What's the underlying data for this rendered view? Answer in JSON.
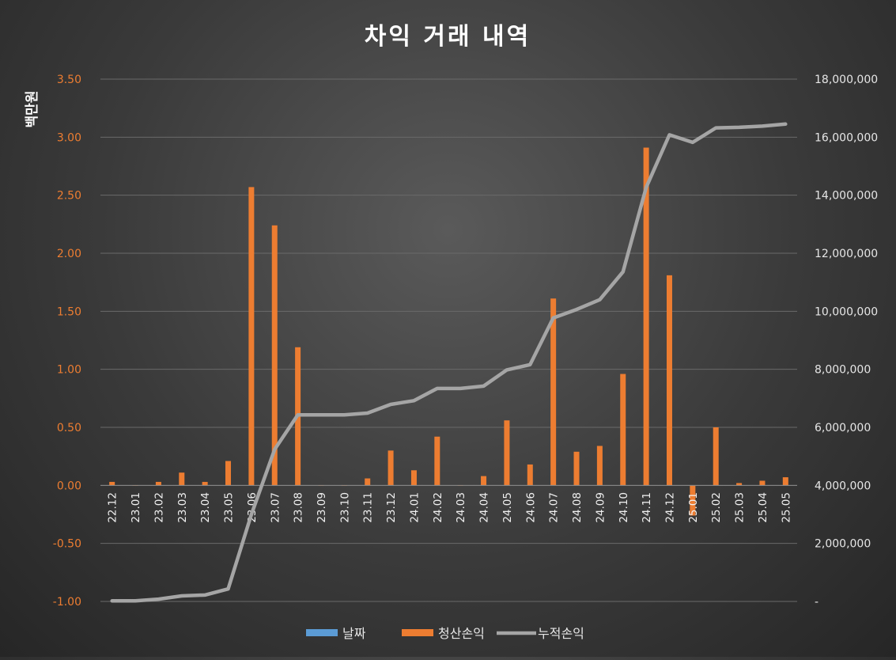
{
  "chart_data": {
    "type": "bar",
    "title": "차익 거래 내역",
    "ylabel": "백만원",
    "categories": [
      "22.12",
      "23.01",
      "23.02",
      "23.03",
      "23.04",
      "23.05",
      "23.06",
      "23.07",
      "23.08",
      "23.09",
      "23.10",
      "23.11",
      "23.12",
      "24.01",
      "24.02",
      "24.03",
      "24.04",
      "24.05",
      "24.06",
      "24.07",
      "24.08",
      "24.09",
      "24.10",
      "24.11",
      "24.12",
      "25.01",
      "25.02",
      "25.03",
      "25.04",
      "25.05"
    ],
    "series": [
      {
        "name": "날짜",
        "type": "bar",
        "axis": "left",
        "color": "#5b9bd5",
        "values": [
          0,
          0,
          0,
          0,
          0,
          0,
          0,
          0,
          0,
          0,
          0,
          0,
          0,
          0,
          0,
          0,
          0,
          0,
          0,
          0,
          0,
          0,
          0,
          0,
          0,
          0,
          0,
          0,
          0,
          0
        ]
      },
      {
        "name": "청산손익",
        "type": "bar",
        "axis": "left",
        "color": "#ed7d31",
        "values": [
          0.03,
          0.0,
          0.03,
          0.11,
          0.03,
          0.21,
          2.57,
          2.24,
          1.19,
          0.0,
          0.0,
          0.06,
          0.3,
          0.13,
          0.42,
          0.0,
          0.08,
          0.56,
          0.18,
          1.61,
          0.29,
          0.34,
          0.96,
          2.91,
          1.81,
          -0.26,
          0.5,
          0.02,
          0.04,
          0.07
        ]
      },
      {
        "name": "누적손익",
        "type": "line",
        "axis": "right",
        "color": "#a5a5a5",
        "values": [
          20000,
          20000,
          80000,
          190000,
          220000,
          430000,
          3000000,
          5240000,
          6430000,
          6430000,
          6430000,
          6490000,
          6790000,
          6920000,
          7340000,
          7340000,
          7420000,
          7980000,
          8160000,
          9770000,
          10060000,
          10400000,
          11360000,
          14270000,
          16080000,
          15820000,
          16320000,
          16340000,
          16380000,
          16450000
        ]
      }
    ],
    "y_left": {
      "min": -1.0,
      "max": 3.5,
      "step": 0.5,
      "tick_labels": [
        "-1.00",
        "-0.50",
        "0.00",
        "0.50",
        "1.00",
        "1.50",
        "2.00",
        "2.50",
        "3.00",
        "3.50"
      ]
    },
    "y_right": {
      "min": 0,
      "max": 18000000,
      "step": 2000000,
      "tick_labels": [
        "-",
        "2,000,000",
        "4,000,000",
        "6,000,000",
        "8,000,000",
        "10,000,000",
        "12,000,000",
        "14,000,000",
        "16,000,000",
        "18,000,000"
      ]
    },
    "grid": true,
    "legend_position": "bottom"
  }
}
